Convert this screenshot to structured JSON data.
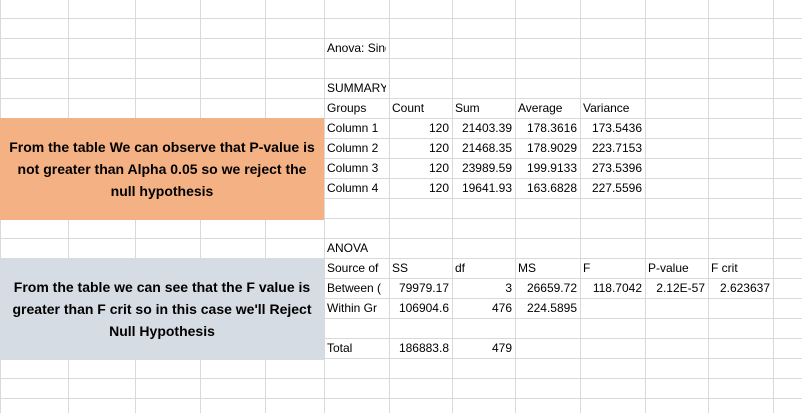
{
  "colors": {
    "grid_line": "#d9d9d9",
    "orange_callout_bg": "#f4b183",
    "blue_callout_bg": "#d6dce4"
  },
  "anova": {
    "title": "Anova: Single Factor",
    "summary_label": "SUMMARY",
    "summary_headers": [
      "Groups",
      "Count",
      "Sum",
      "Average",
      "Variance"
    ],
    "summary_rows": [
      [
        "Column 1",
        "120",
        "21403.39",
        "178.3616",
        "173.5436"
      ],
      [
        "Column 2",
        "120",
        "21468.35",
        "178.9029",
        "223.7153"
      ],
      [
        "Column 3",
        "120",
        "23989.59",
        "199.9133",
        "273.5396"
      ],
      [
        "Column 4",
        "120",
        "19641.93",
        "163.6828",
        "227.5596"
      ]
    ],
    "anova_label": "ANOVA",
    "anova_headers": [
      "Source of",
      "SS",
      "df",
      "MS",
      "F",
      "P-value",
      "F crit"
    ],
    "anova_rows": [
      [
        "Between (",
        "79979.17",
        "3",
        "26659.72",
        "118.7042",
        "2.12E-57",
        "2.623637"
      ],
      [
        "Within Gr",
        "106904.6",
        "476",
        "224.5895",
        "",
        "",
        ""
      ]
    ],
    "total_row": [
      "Total",
      "186883.8",
      "479"
    ]
  },
  "callouts": {
    "orange_text": "From the table We can observe that P-value is not greater than Alpha 0.05 so we  reject the null hypothesis",
    "blue_text": "From the table we can see that the F value is greater than F crit so in this case we'll Reject Null Hypothesis"
  }
}
